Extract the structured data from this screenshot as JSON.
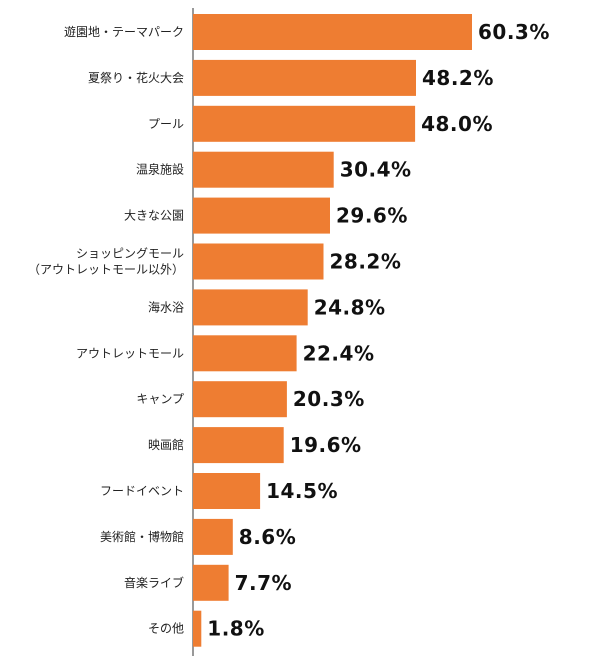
{
  "colors": {
    "bar": "#ee7d32",
    "axis": "#333333",
    "text": "#222222"
  },
  "chart_data": {
    "type": "bar",
    "orientation": "horizontal",
    "title": "",
    "xlabel": "",
    "ylabel": "",
    "grid": false,
    "xlim": [
      0,
      62
    ],
    "categories": [
      [
        "遊園地・テーマパーク"
      ],
      [
        "夏祭り・花火大会"
      ],
      [
        "プール"
      ],
      [
        "温泉施設"
      ],
      [
        "大きな公園"
      ],
      [
        "ショッピングモール",
        "（アウトレットモール以外）"
      ],
      [
        "海水浴"
      ],
      [
        "アウトレットモール"
      ],
      [
        "キャンプ"
      ],
      [
        "映画館"
      ],
      [
        "フードイベント"
      ],
      [
        "美術館・博物館"
      ],
      [
        "音楽ライブ"
      ],
      [
        "その他"
      ]
    ],
    "values": [
      60.3,
      48.2,
      48.0,
      30.4,
      29.6,
      28.2,
      24.8,
      22.4,
      20.3,
      19.6,
      14.5,
      8.6,
      7.7,
      1.8
    ],
    "data_labels": [
      "60.3%",
      "48.2%",
      "48.0%",
      "30.4%",
      "29.6%",
      "28.2%",
      "24.8%",
      "22.4%",
      "20.3%",
      "19.6%",
      "14.5%",
      "8.6%",
      "7.7%",
      "1.8%"
    ]
  }
}
